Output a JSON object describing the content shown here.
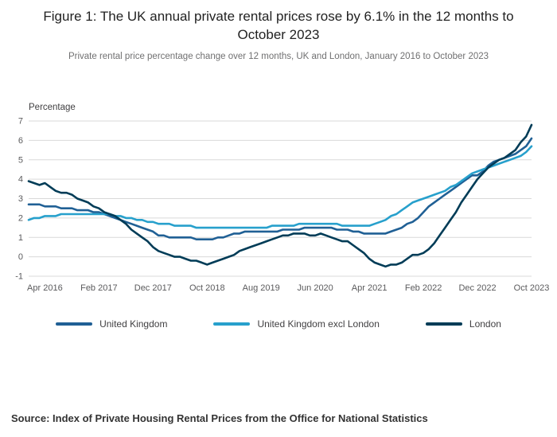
{
  "header": {
    "title": "Figure 1: The UK annual private rental prices rose by 6.1% in the 12 months to October 2023",
    "subtitle": "Private rental price percentage change over 12 months, UK and London, January 2016 to October 2023"
  },
  "chart_data": {
    "type": "line",
    "title": "Figure 1: The UK annual private rental prices rose by 6.1% in the 12 months to October 2023",
    "ylabel": "Percentage",
    "ylim": [
      -1,
      7
    ],
    "y_ticks": [
      7,
      6,
      5,
      4,
      3,
      2,
      1,
      0,
      -1
    ],
    "grid": true,
    "legend_position": "bottom",
    "x_frequency": "monthly",
    "x_range": "January 2016 to October 2023",
    "x_tick_labels": [
      "Apr 2016",
      "Feb 2017",
      "Dec 2017",
      "Oct 2018",
      "Aug 2019",
      "Jun 2020",
      "Apr 2021",
      "Feb 2022",
      "Dec 2022",
      "Oct 2023"
    ],
    "x_tick_indices": [
      3,
      13,
      23,
      33,
      43,
      53,
      63,
      73,
      83,
      93
    ],
    "grid_color": "#d9d9d9",
    "series": [
      {
        "name": "United Kingdom",
        "color": "#206095",
        "values": [
          2.7,
          2.7,
          2.7,
          2.6,
          2.6,
          2.6,
          2.5,
          2.5,
          2.5,
          2.4,
          2.4,
          2.4,
          2.3,
          2.3,
          2.2,
          2.1,
          2.0,
          1.9,
          1.8,
          1.7,
          1.6,
          1.5,
          1.4,
          1.3,
          1.1,
          1.1,
          1.0,
          1.0,
          1.0,
          1.0,
          1.0,
          0.9,
          0.9,
          0.9,
          0.9,
          1.0,
          1.0,
          1.1,
          1.2,
          1.2,
          1.3,
          1.3,
          1.3,
          1.3,
          1.3,
          1.3,
          1.3,
          1.4,
          1.4,
          1.4,
          1.4,
          1.5,
          1.5,
          1.5,
          1.5,
          1.5,
          1.5,
          1.4,
          1.4,
          1.4,
          1.3,
          1.3,
          1.2,
          1.2,
          1.2,
          1.2,
          1.2,
          1.3,
          1.4,
          1.5,
          1.7,
          1.8,
          2.0,
          2.3,
          2.6,
          2.8,
          3.0,
          3.2,
          3.4,
          3.6,
          3.8,
          4.0,
          4.2,
          4.2,
          4.4,
          4.7,
          4.9,
          5.0,
          5.1,
          5.2,
          5.3,
          5.5,
          5.7,
          6.1
        ]
      },
      {
        "name": "United Kingdom excl London",
        "color": "#27a0cc",
        "values": [
          1.9,
          2.0,
          2.0,
          2.1,
          2.1,
          2.1,
          2.2,
          2.2,
          2.2,
          2.2,
          2.2,
          2.2,
          2.2,
          2.2,
          2.2,
          2.2,
          2.1,
          2.1,
          2.0,
          2.0,
          1.9,
          1.9,
          1.8,
          1.8,
          1.7,
          1.7,
          1.7,
          1.6,
          1.6,
          1.6,
          1.6,
          1.5,
          1.5,
          1.5,
          1.5,
          1.5,
          1.5,
          1.5,
          1.5,
          1.5,
          1.5,
          1.5,
          1.5,
          1.5,
          1.5,
          1.6,
          1.6,
          1.6,
          1.6,
          1.6,
          1.7,
          1.7,
          1.7,
          1.7,
          1.7,
          1.7,
          1.7,
          1.7,
          1.6,
          1.6,
          1.6,
          1.6,
          1.6,
          1.6,
          1.7,
          1.8,
          1.9,
          2.1,
          2.2,
          2.4,
          2.6,
          2.8,
          2.9,
          3.0,
          3.1,
          3.2,
          3.3,
          3.4,
          3.6,
          3.7,
          3.9,
          4.1,
          4.3,
          4.4,
          4.5,
          4.6,
          4.7,
          4.8,
          4.9,
          5.0,
          5.1,
          5.2,
          5.4,
          5.7
        ]
      },
      {
        "name": "London",
        "color": "#003c57",
        "values": [
          3.9,
          3.8,
          3.7,
          3.8,
          3.6,
          3.4,
          3.3,
          3.3,
          3.2,
          3.0,
          2.9,
          2.8,
          2.6,
          2.5,
          2.3,
          2.2,
          2.1,
          1.9,
          1.7,
          1.4,
          1.2,
          1.0,
          0.8,
          0.5,
          0.3,
          0.2,
          0.1,
          0.0,
          0.0,
          -0.1,
          -0.2,
          -0.2,
          -0.3,
          -0.4,
          -0.3,
          -0.2,
          -0.1,
          0.0,
          0.1,
          0.3,
          0.4,
          0.5,
          0.6,
          0.7,
          0.8,
          0.9,
          1.0,
          1.1,
          1.1,
          1.2,
          1.2,
          1.2,
          1.1,
          1.1,
          1.2,
          1.1,
          1.0,
          0.9,
          0.8,
          0.8,
          0.6,
          0.4,
          0.2,
          -0.1,
          -0.3,
          -0.4,
          -0.5,
          -0.4,
          -0.4,
          -0.3,
          -0.1,
          0.1,
          0.1,
          0.2,
          0.4,
          0.7,
          1.1,
          1.5,
          1.9,
          2.3,
          2.8,
          3.2,
          3.6,
          4.0,
          4.3,
          4.6,
          4.8,
          5.0,
          5.1,
          5.3,
          5.5,
          5.9,
          6.2,
          6.8
        ]
      }
    ]
  },
  "source": "Source: Index of Private Housing Rental Prices from the Office for National Statistics"
}
